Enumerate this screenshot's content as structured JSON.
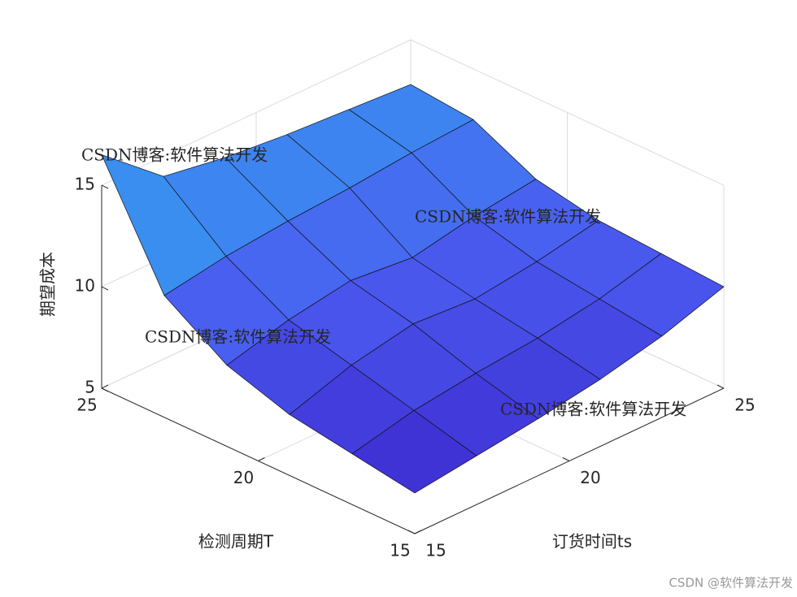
{
  "chart_data": {
    "type": "surface",
    "xlabel": "订货时间ts",
    "ylabel": "检测周期T",
    "zlabel": "期望成本",
    "x": [
      15,
      17,
      19,
      21,
      23,
      25
    ],
    "y": [
      15,
      17,
      19,
      21,
      23,
      25
    ],
    "z": [
      [
        7.0,
        7.4,
        7.8,
        8.3,
        9.0,
        10.0
      ],
      [
        7.5,
        8.2,
        8.6,
        8.9,
        9.4,
        10.2
      ],
      [
        8.0,
        9.0,
        9.6,
        9.4,
        9.8,
        10.4
      ],
      [
        9.0,
        9.8,
        10.3,
        10.0,
        10.6,
        11.0
      ],
      [
        11.0,
        11.5,
        11.8,
        12.0,
        12.3,
        12.5
      ],
      [
        16.5,
        14.0,
        13.5,
        13.2,
        13.0,
        12.8
      ]
    ],
    "xlim": [
      15,
      25
    ],
    "ylim": [
      15,
      25
    ],
    "zlim": [
      5,
      15
    ],
    "xticks": [
      15,
      20,
      25
    ],
    "yticks": [
      15,
      20,
      25
    ],
    "zticks": [
      5,
      10,
      15
    ],
    "grid": true,
    "colormap": [
      "#3e2bd0",
      "#4a5cf0",
      "#3a8ff0",
      "#22c0c0"
    ],
    "edge_color": "#111111",
    "watermarks": [
      {
        "text": "CSDN博客:软件算法开发",
        "color": "#f07878"
      },
      {
        "text": "CSDN博客:软件算法开发",
        "color": "#7d7df2"
      },
      {
        "text": "CSDN博客:软件算法开发",
        "color": "#f5c890"
      },
      {
        "text": "CSDN博客:软件算法开发",
        "color": "#b0b0b0"
      }
    ],
    "footer": "CSDN @软件算法开发"
  }
}
